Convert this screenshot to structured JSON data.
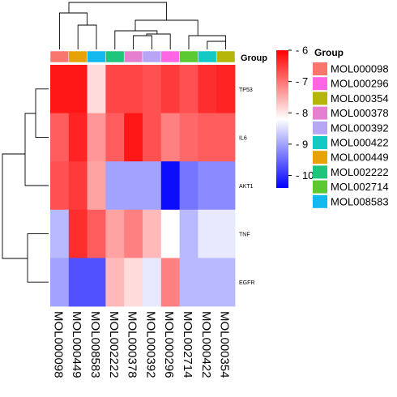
{
  "chart_data": {
    "type": "heatmap",
    "title": "",
    "columns": [
      "MOL000098",
      "MOL000449",
      "MOL008583",
      "MOL002222",
      "MOL000378",
      "MOL000392",
      "MOL000296",
      "MOL002714",
      "MOL000422",
      "MOL000354"
    ],
    "rows": [
      "TP53",
      "IL6",
      "AKT1",
      "TNF",
      "EGFR"
    ],
    "values": [
      [
        6.2,
        6.2,
        7.9,
        6.6,
        6.6,
        6.7,
        6.5,
        6.7,
        6.4,
        6.3
      ],
      [
        6.8,
        6.3,
        7.3,
        6.8,
        6.2,
        6.7,
        7.1,
        6.9,
        6.8,
        6.8
      ],
      [
        6.7,
        6.5,
        7.4,
        9.0,
        9.0,
        9.0,
        10.3,
        9.4,
        9.2,
        9.2
      ],
      [
        8.8,
        6.4,
        6.8,
        7.4,
        7.1,
        7.6,
        8.2,
        8.8,
        8.4,
        8.4
      ],
      [
        9.0,
        9.7,
        9.7,
        7.6,
        7.9,
        8.4,
        7.1,
        8.8,
        8.8,
        8.8
      ]
    ],
    "colorbar": {
      "min": 6,
      "max": 10.4,
      "ticks": [
        6,
        7,
        8,
        9,
        10
      ],
      "colors": [
        "#ff0000",
        "#ffffff",
        "#0000ff"
      ]
    },
    "group_title": "Group",
    "legend": {
      "title": "Group",
      "placement": "right"
    },
    "groups": [
      {
        "name": "MOL000098",
        "color": "#f8766d"
      },
      {
        "name": "MOL000296",
        "color": "#ff66e6"
      },
      {
        "name": "MOL000354",
        "color": "#b5b50a"
      },
      {
        "name": "MOL000378",
        "color": "#e580d0"
      },
      {
        "name": "MOL000392",
        "color": "#b7a6f5"
      },
      {
        "name": "MOL000422",
        "color": "#12c9c5"
      },
      {
        "name": "MOL000449",
        "color": "#e6a206"
      },
      {
        "name": "MOL002222",
        "color": "#1fc57b"
      },
      {
        "name": "MOL002714",
        "color": "#5cc832"
      },
      {
        "name": "MOL008583",
        "color": "#12b9ee"
      }
    ]
  }
}
